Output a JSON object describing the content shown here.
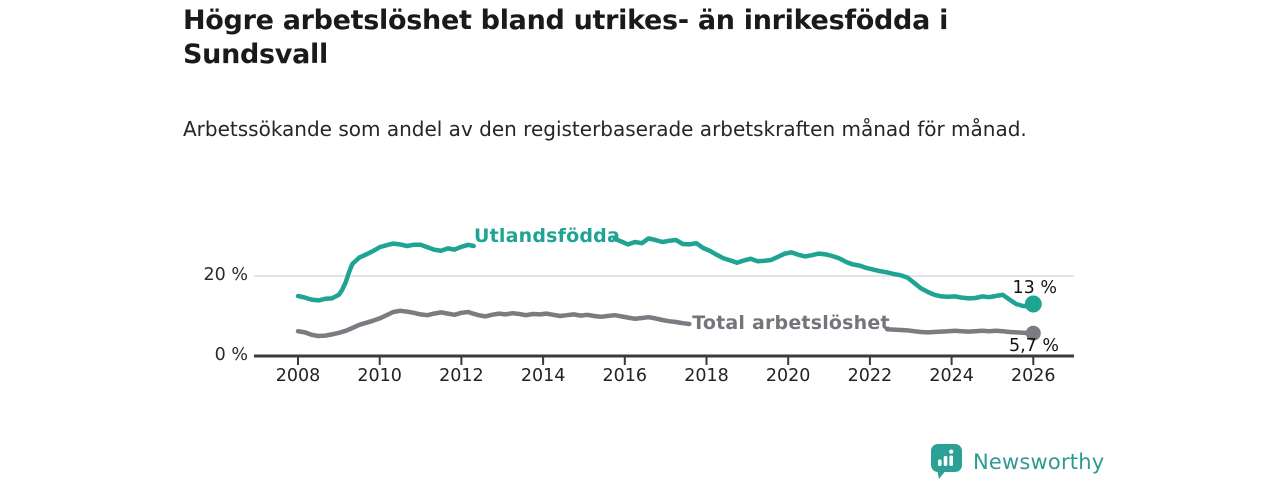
{
  "header": {
    "title": "Högre arbetslöshet bland utrikes- än inrikesfödda i Sundsvall",
    "subtitle": "Arbetssökande som andel av den registerbaserade arbetskraften månad för månad."
  },
  "chart_data": {
    "type": "line",
    "title": "Högre arbetslöshet bland utrikes- än inrikesfödda i Sundsvall",
    "subtitle": "Arbetssökande som andel av den registerbaserade arbetskraften månad för månad.",
    "xlabel": "",
    "ylabel": "",
    "xlim": [
      2006.9,
      2027
    ],
    "ylim": [
      0,
      30
    ],
    "grid": "horizontal-20-only",
    "legend_position": "inline-on-line",
    "y_ticks": [
      {
        "value": 20,
        "label": "20 %"
      },
      {
        "value": 0,
        "label": "0 %"
      }
    ],
    "x_ticks": [
      {
        "year": 2008,
        "label": "2008"
      },
      {
        "year": 2010,
        "label": "2010"
      },
      {
        "year": 2012,
        "label": "2012"
      },
      {
        "year": 2014,
        "label": "2014"
      },
      {
        "year": 2016,
        "label": "2016"
      },
      {
        "year": 2018,
        "label": "2018"
      },
      {
        "year": 2020,
        "label": "2020"
      },
      {
        "year": 2022,
        "label": "2022"
      },
      {
        "year": 2024,
        "label": "2024"
      },
      {
        "year": 2026,
        "label": "2026"
      }
    ],
    "series": [
      {
        "name": "Utlandsfödda",
        "color": "#1fa393",
        "end_label": "13 %",
        "end_value": 13,
        "points": [
          [
            2008.0,
            15.0
          ],
          [
            2008.17,
            14.6
          ],
          [
            2008.33,
            14.1
          ],
          [
            2008.5,
            13.9
          ],
          [
            2008.67,
            14.3
          ],
          [
            2008.83,
            14.4
          ],
          [
            2009.0,
            15.3
          ],
          [
            2009.08,
            16.5
          ],
          [
            2009.17,
            18.5
          ],
          [
            2009.25,
            21.0
          ],
          [
            2009.33,
            23.0
          ],
          [
            2009.5,
            24.6
          ],
          [
            2009.67,
            25.4
          ],
          [
            2009.83,
            26.2
          ],
          [
            2010.0,
            27.2
          ],
          [
            2010.17,
            27.7
          ],
          [
            2010.33,
            28.1
          ],
          [
            2010.5,
            27.9
          ],
          [
            2010.67,
            27.5
          ],
          [
            2010.83,
            27.8
          ],
          [
            2011.0,
            27.8
          ],
          [
            2011.17,
            27.2
          ],
          [
            2011.33,
            26.6
          ],
          [
            2011.5,
            26.3
          ],
          [
            2011.67,
            26.9
          ],
          [
            2011.83,
            26.6
          ],
          [
            2012.0,
            27.3
          ],
          [
            2012.17,
            27.8
          ],
          [
            2012.3,
            27.5
          ],
          [
            2012.5,
            27.2
          ],
          [
            2012.75,
            27.6
          ],
          [
            2013.0,
            27.9
          ],
          [
            2013.25,
            28.2
          ],
          [
            2013.5,
            27.8
          ],
          [
            2013.75,
            28.1
          ],
          [
            2014.0,
            28.4
          ],
          [
            2014.25,
            28.1
          ],
          [
            2014.5,
            28.5
          ],
          [
            2014.75,
            28.2
          ],
          [
            2015.0,
            28.6
          ],
          [
            2015.25,
            28.9
          ],
          [
            2015.5,
            28.8
          ],
          [
            2015.75,
            29.3
          ],
          [
            2015.92,
            28.6
          ],
          [
            2016.08,
            27.9
          ],
          [
            2016.25,
            28.5
          ],
          [
            2016.42,
            28.2
          ],
          [
            2016.58,
            29.4
          ],
          [
            2016.75,
            29.0
          ],
          [
            2016.92,
            28.5
          ],
          [
            2017.08,
            28.8
          ],
          [
            2017.25,
            29.0
          ],
          [
            2017.42,
            28.0
          ],
          [
            2017.58,
            27.9
          ],
          [
            2017.75,
            28.2
          ],
          [
            2017.92,
            27.0
          ],
          [
            2018.08,
            26.3
          ],
          [
            2018.25,
            25.3
          ],
          [
            2018.42,
            24.4
          ],
          [
            2018.58,
            23.9
          ],
          [
            2018.75,
            23.3
          ],
          [
            2018.92,
            23.9
          ],
          [
            2019.08,
            24.3
          ],
          [
            2019.25,
            23.7
          ],
          [
            2019.42,
            23.8
          ],
          [
            2019.58,
            24.0
          ],
          [
            2019.75,
            24.8
          ],
          [
            2019.92,
            25.6
          ],
          [
            2020.08,
            25.9
          ],
          [
            2020.25,
            25.3
          ],
          [
            2020.42,
            24.9
          ],
          [
            2020.58,
            25.2
          ],
          [
            2020.75,
            25.6
          ],
          [
            2020.92,
            25.4
          ],
          [
            2021.08,
            25.0
          ],
          [
            2021.25,
            24.4
          ],
          [
            2021.42,
            23.5
          ],
          [
            2021.58,
            22.9
          ],
          [
            2021.75,
            22.6
          ],
          [
            2021.92,
            22.0
          ],
          [
            2022.08,
            21.6
          ],
          [
            2022.25,
            21.2
          ],
          [
            2022.42,
            20.9
          ],
          [
            2022.58,
            20.5
          ],
          [
            2022.75,
            20.2
          ],
          [
            2022.92,
            19.6
          ],
          [
            2023.08,
            18.3
          ],
          [
            2023.25,
            16.9
          ],
          [
            2023.42,
            16.0
          ],
          [
            2023.58,
            15.3
          ],
          [
            2023.75,
            14.9
          ],
          [
            2023.92,
            14.8
          ],
          [
            2024.08,
            14.9
          ],
          [
            2024.25,
            14.6
          ],
          [
            2024.42,
            14.4
          ],
          [
            2024.58,
            14.5
          ],
          [
            2024.75,
            14.9
          ],
          [
            2024.92,
            14.7
          ],
          [
            2025.08,
            15.0
          ],
          [
            2025.25,
            15.3
          ],
          [
            2025.42,
            14.1
          ],
          [
            2025.58,
            13.0
          ],
          [
            2025.75,
            12.5
          ],
          [
            2025.92,
            12.4
          ],
          [
            2026.0,
            13.0
          ]
        ]
      },
      {
        "name": "Total arbetslöshet",
        "color": "#7b7b81",
        "end_label": "5,7 %",
        "end_value": 5.7,
        "points": [
          [
            2008.0,
            6.2
          ],
          [
            2008.17,
            5.9
          ],
          [
            2008.33,
            5.3
          ],
          [
            2008.5,
            5.0
          ],
          [
            2008.67,
            5.1
          ],
          [
            2008.83,
            5.4
          ],
          [
            2009.0,
            5.8
          ],
          [
            2009.17,
            6.3
          ],
          [
            2009.33,
            7.0
          ],
          [
            2009.5,
            7.8
          ],
          [
            2009.67,
            8.3
          ],
          [
            2009.83,
            8.8
          ],
          [
            2010.0,
            9.4
          ],
          [
            2010.17,
            10.2
          ],
          [
            2010.33,
            11.0
          ],
          [
            2010.5,
            11.3
          ],
          [
            2010.67,
            11.1
          ],
          [
            2010.83,
            10.8
          ],
          [
            2011.0,
            10.4
          ],
          [
            2011.17,
            10.2
          ],
          [
            2011.33,
            10.6
          ],
          [
            2011.5,
            10.9
          ],
          [
            2011.67,
            10.6
          ],
          [
            2011.83,
            10.3
          ],
          [
            2012.0,
            10.8
          ],
          [
            2012.17,
            11.0
          ],
          [
            2012.25,
            10.7
          ],
          [
            2012.42,
            10.2
          ],
          [
            2012.58,
            9.9
          ],
          [
            2012.75,
            10.3
          ],
          [
            2012.92,
            10.6
          ],
          [
            2013.08,
            10.4
          ],
          [
            2013.25,
            10.7
          ],
          [
            2013.42,
            10.5
          ],
          [
            2013.58,
            10.2
          ],
          [
            2013.75,
            10.5
          ],
          [
            2013.92,
            10.4
          ],
          [
            2014.08,
            10.6
          ],
          [
            2014.25,
            10.3
          ],
          [
            2014.42,
            10.0
          ],
          [
            2014.58,
            10.2
          ],
          [
            2014.75,
            10.4
          ],
          [
            2014.92,
            10.1
          ],
          [
            2015.08,
            10.3
          ],
          [
            2015.25,
            10.0
          ],
          [
            2015.42,
            9.8
          ],
          [
            2015.58,
            10.0
          ],
          [
            2015.75,
            10.2
          ],
          [
            2015.92,
            9.9
          ],
          [
            2016.08,
            9.6
          ],
          [
            2016.25,
            9.3
          ],
          [
            2016.42,
            9.5
          ],
          [
            2016.58,
            9.7
          ],
          [
            2016.75,
            9.4
          ],
          [
            2016.92,
            9.0
          ],
          [
            2017.08,
            8.7
          ],
          [
            2017.25,
            8.5
          ],
          [
            2017.42,
            8.2
          ],
          [
            2017.58,
            8.0
          ],
          [
            2017.75,
            8.1
          ],
          [
            2018.0,
            7.9
          ],
          [
            2018.5,
            7.6
          ],
          [
            2019.0,
            7.4
          ],
          [
            2019.5,
            7.2
          ],
          [
            2020.0,
            7.5
          ],
          [
            2020.33,
            9.0
          ],
          [
            2020.67,
            8.7
          ],
          [
            2021.0,
            8.3
          ],
          [
            2021.5,
            7.7
          ],
          [
            2022.0,
            7.1
          ],
          [
            2022.42,
            6.7
          ],
          [
            2022.58,
            6.6
          ],
          [
            2022.75,
            6.5
          ],
          [
            2022.92,
            6.4
          ],
          [
            2023.08,
            6.2
          ],
          [
            2023.25,
            6.0
          ],
          [
            2023.42,
            5.9
          ],
          [
            2023.58,
            6.0
          ],
          [
            2023.75,
            6.1
          ],
          [
            2023.92,
            6.2
          ],
          [
            2024.08,
            6.3
          ],
          [
            2024.25,
            6.2
          ],
          [
            2024.42,
            6.1
          ],
          [
            2024.58,
            6.2
          ],
          [
            2024.75,
            6.3
          ],
          [
            2024.92,
            6.2
          ],
          [
            2025.08,
            6.3
          ],
          [
            2025.25,
            6.2
          ],
          [
            2025.42,
            6.0
          ],
          [
            2025.58,
            5.9
          ],
          [
            2025.75,
            5.8
          ],
          [
            2025.92,
            5.7
          ],
          [
            2026.0,
            5.7
          ]
        ]
      }
    ],
    "colors": {
      "accent_teal": "#1fa393",
      "line_gray": "#7b7b81",
      "axis": "#3a3a3e",
      "gridline": "#dbdbdb"
    }
  },
  "footer": {
    "brand": "Newsworthy"
  }
}
